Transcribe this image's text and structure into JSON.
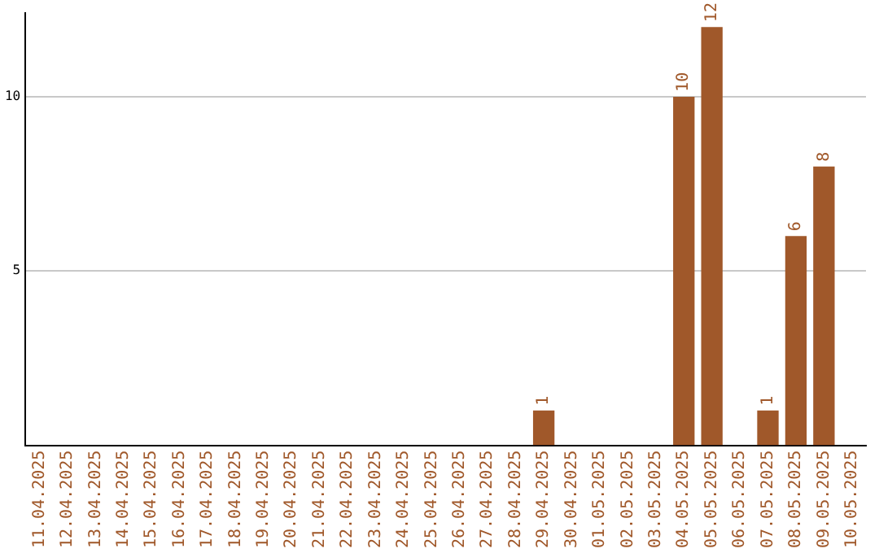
{
  "chart_data": {
    "type": "bar",
    "categories": [
      "11.04.2025",
      "12.04.2025",
      "13.04.2025",
      "14.04.2025",
      "15.04.2025",
      "16.04.2025",
      "17.04.2025",
      "18.04.2025",
      "19.04.2025",
      "20.04.2025",
      "21.04.2025",
      "22.04.2025",
      "23.04.2025",
      "24.04.2025",
      "25.04.2025",
      "26.04.2025",
      "27.04.2025",
      "28.04.2025",
      "29.04.2025",
      "30.04.2025",
      "01.05.2025",
      "02.05.2025",
      "03.05.2025",
      "04.05.2025",
      "05.05.2025",
      "06.05.2025",
      "07.05.2025",
      "08.05.2025",
      "09.05.2025",
      "10.05.2025"
    ],
    "values": [
      0,
      0,
      0,
      0,
      0,
      0,
      0,
      0,
      0,
      0,
      0,
      0,
      0,
      0,
      0,
      0,
      0,
      0,
      1,
      0,
      0,
      0,
      0,
      10,
      12,
      0,
      1,
      6,
      8,
      0
    ],
    "value_labels": [
      null,
      null,
      null,
      null,
      null,
      null,
      null,
      null,
      null,
      null,
      null,
      null,
      null,
      null,
      null,
      null,
      null,
      null,
      "1",
      null,
      null,
      null,
      null,
      "10",
      "12",
      null,
      "1",
      "6",
      "8",
      null
    ],
    "color": "#a0582a",
    "ylim": [
      0,
      12.4
    ],
    "yticks": [
      5,
      10
    ],
    "grid": "y",
    "legend": false
  }
}
